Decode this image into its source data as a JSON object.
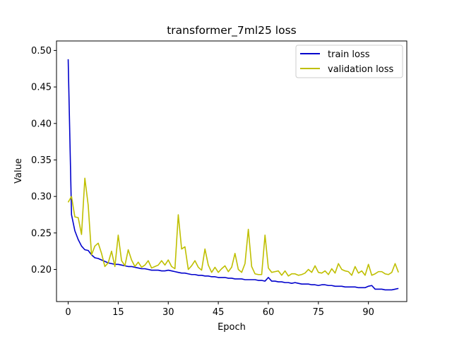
{
  "chart_data": {
    "type": "line",
    "title": "transformer_7ml25 loss",
    "xlabel": "Epoch",
    "ylabel": "Value",
    "xlim": [
      -3.5,
      101.5
    ],
    "ylim": [
      0.156,
      0.513
    ],
    "xticks": [
      0,
      15,
      30,
      45,
      60,
      75,
      90
    ],
    "yticks": [
      0.2,
      0.25,
      0.3,
      0.35,
      0.4,
      0.45,
      0.5
    ],
    "ytick_labels": [
      "0.20",
      "0.25",
      "0.30",
      "0.35",
      "0.40",
      "0.45",
      "0.50"
    ],
    "grid": false,
    "legend_position": "upper right",
    "series": [
      {
        "name": "train loss",
        "color": "#0000cc",
        "x": [
          0,
          1,
          2,
          3,
          4,
          5,
          6,
          7,
          8,
          9,
          10,
          11,
          12,
          13,
          14,
          15,
          16,
          17,
          18,
          19,
          20,
          21,
          22,
          23,
          24,
          25,
          26,
          27,
          28,
          29,
          30,
          31,
          32,
          33,
          34,
          35,
          36,
          37,
          38,
          39,
          40,
          41,
          42,
          43,
          44,
          45,
          46,
          47,
          48,
          49,
          50,
          51,
          52,
          53,
          54,
          55,
          56,
          57,
          58,
          59,
          60,
          61,
          62,
          63,
          64,
          65,
          66,
          67,
          68,
          69,
          70,
          71,
          72,
          73,
          74,
          75,
          76,
          77,
          78,
          79,
          80,
          81,
          82,
          83,
          84,
          85,
          86,
          87,
          88,
          89,
          90,
          91,
          92,
          93,
          94,
          95,
          96,
          97,
          98,
          99
        ],
        "values": [
          0.488,
          0.275,
          0.253,
          0.241,
          0.232,
          0.227,
          0.226,
          0.22,
          0.216,
          0.215,
          0.213,
          0.211,
          0.209,
          0.208,
          0.207,
          0.207,
          0.206,
          0.205,
          0.204,
          0.204,
          0.203,
          0.202,
          0.201,
          0.201,
          0.2,
          0.199,
          0.199,
          0.199,
          0.198,
          0.198,
          0.199,
          0.198,
          0.197,
          0.196,
          0.195,
          0.195,
          0.194,
          0.193,
          0.193,
          0.192,
          0.192,
          0.191,
          0.191,
          0.19,
          0.19,
          0.189,
          0.189,
          0.189,
          0.188,
          0.188,
          0.187,
          0.187,
          0.187,
          0.186,
          0.186,
          0.186,
          0.186,
          0.185,
          0.185,
          0.184,
          0.189,
          0.184,
          0.184,
          0.183,
          0.183,
          0.182,
          0.182,
          0.181,
          0.182,
          0.181,
          0.18,
          0.18,
          0.18,
          0.179,
          0.179,
          0.178,
          0.179,
          0.179,
          0.178,
          0.178,
          0.177,
          0.177,
          0.177,
          0.176,
          0.176,
          0.176,
          0.176,
          0.175,
          0.175,
          0.175,
          0.177,
          0.178,
          0.173,
          0.173,
          0.173,
          0.172,
          0.172,
          0.172,
          0.173,
          0.174
        ]
      },
      {
        "name": "validation loss",
        "color": "#bfbf00",
        "x": [
          0,
          1,
          2,
          3,
          4,
          5,
          6,
          7,
          8,
          9,
          10,
          11,
          12,
          13,
          14,
          15,
          16,
          17,
          18,
          19,
          20,
          21,
          22,
          23,
          24,
          25,
          26,
          27,
          28,
          29,
          30,
          31,
          32,
          33,
          34,
          35,
          36,
          37,
          38,
          39,
          40,
          41,
          42,
          43,
          44,
          45,
          46,
          47,
          48,
          49,
          50,
          51,
          52,
          53,
          54,
          55,
          56,
          57,
          58,
          59,
          60,
          61,
          62,
          63,
          64,
          65,
          66,
          67,
          68,
          69,
          70,
          71,
          72,
          73,
          74,
          75,
          76,
          77,
          78,
          79,
          80,
          81,
          82,
          83,
          84,
          85,
          86,
          87,
          88,
          89,
          90,
          91,
          92,
          93,
          94,
          95,
          96,
          97,
          98,
          99
        ],
        "values": [
          0.292,
          0.3,
          0.272,
          0.271,
          0.248,
          0.325,
          0.288,
          0.22,
          0.232,
          0.236,
          0.222,
          0.204,
          0.209,
          0.225,
          0.204,
          0.247,
          0.212,
          0.205,
          0.227,
          0.213,
          0.204,
          0.21,
          0.203,
          0.206,
          0.212,
          0.202,
          0.204,
          0.206,
          0.212,
          0.206,
          0.213,
          0.204,
          0.201,
          0.275,
          0.228,
          0.231,
          0.2,
          0.205,
          0.212,
          0.203,
          0.199,
          0.228,
          0.206,
          0.196,
          0.203,
          0.196,
          0.201,
          0.205,
          0.197,
          0.203,
          0.222,
          0.2,
          0.196,
          0.208,
          0.255,
          0.204,
          0.194,
          0.193,
          0.193,
          0.247,
          0.202,
          0.196,
          0.197,
          0.198,
          0.192,
          0.198,
          0.191,
          0.194,
          0.194,
          0.192,
          0.193,
          0.195,
          0.2,
          0.196,
          0.205,
          0.196,
          0.195,
          0.198,
          0.193,
          0.201,
          0.195,
          0.208,
          0.2,
          0.198,
          0.197,
          0.192,
          0.204,
          0.195,
          0.198,
          0.192,
          0.207,
          0.192,
          0.194,
          0.197,
          0.197,
          0.194,
          0.193,
          0.196,
          0.208,
          0.196
        ]
      }
    ]
  }
}
